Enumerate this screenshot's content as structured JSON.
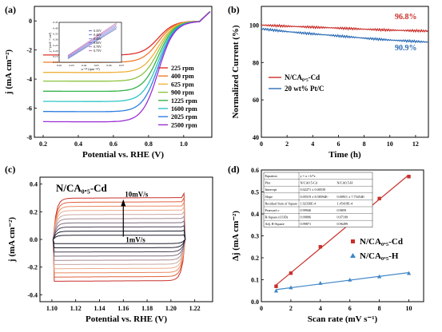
{
  "colors": {
    "rpm": [
      "#e0302a",
      "#f07a2a",
      "#efb23b",
      "#8bc43f",
      "#35b34a",
      "#2ec4c4",
      "#2d7fe0",
      "#9b2fd6"
    ],
    "b_nca": "#c9302c",
    "b_pt": "#2d6db5",
    "c_curves": [
      "#c9302c",
      "#e0623c",
      "#ea8a60",
      "#eeaa8a",
      "#caa8a0",
      "#a88a92",
      "#7c6a7a",
      "#4a3f56",
      "#1f1f2f"
    ],
    "d_cd": "#c9302c",
    "d_h": "#3f86c6"
  },
  "chart_data": [
    {
      "panel": "(a)",
      "type": "line",
      "xlabel": "Potential vs. RHE (V)",
      "ylabel": "j (mA cm⁻²)",
      "xlim": [
        0.15,
        1.16
      ],
      "ylim": [
        -8,
        1
      ],
      "xticks": [
        "0.2",
        "0.4",
        "0.6",
        "0.8",
        "1.0"
      ],
      "yticks": [
        "-8",
        "-6",
        "-4",
        "-2",
        "0"
      ],
      "series": [
        {
          "name": "225 rpm",
          "plateau": -2.35
        },
        {
          "name": "400 rpm",
          "plateau": -2.85
        },
        {
          "name": "625 rpm",
          "plateau": -3.55
        },
        {
          "name": "900 rpm",
          "plateau": -4.15
        },
        {
          "name": "1225 rpm",
          "plateau": -4.85
        },
        {
          "name": "1600 rpm",
          "plateau": -5.55
        },
        {
          "name": "2025 rpm",
          "plateau": -6.25
        },
        {
          "name": "2500 rpm",
          "plateau": -6.95
        }
      ],
      "inset": {
        "xlabel": "ω⁻¹⁄² (rpm⁻¹⁄²)",
        "ylabel": "j⁻¹ (mA⁻¹ cm²)",
        "xticks": [
          "0.02",
          "0.03",
          "0.04",
          "0.05",
          "0.06",
          "0.07"
        ],
        "yticks": [
          "0.10",
          "0.15",
          "0.20",
          "0.25",
          "0.30",
          "0.35",
          "0.40",
          "0.45"
        ],
        "labels": [
          "0.35V",
          "0.40V",
          "0.45V",
          "0.60V",
          "0.70V",
          "0.75V"
        ]
      }
    },
    {
      "panel": "(b)",
      "type": "line",
      "xlabel": "Time (h)",
      "ylabel": "Normalized Current (%)",
      "xlim": [
        0,
        13
      ],
      "ylim": [
        40,
        110
      ],
      "xticks": [
        "0",
        "2",
        "4",
        "6",
        "8",
        "10",
        "12"
      ],
      "yticks": [
        "40",
        "60",
        "80",
        "100"
      ],
      "series": [
        {
          "name": "N/CA₀.₅-Cd",
          "x": [
            0,
            2,
            4,
            6,
            8,
            10,
            13
          ],
          "values": [
            100,
            99.4,
            98.9,
            98.4,
            97.8,
            97.3,
            96.8
          ]
        },
        {
          "name": "20 wt% Pt/C",
          "x": [
            0,
            2,
            4,
            6,
            8,
            10,
            13
          ],
          "values": [
            98,
            96.5,
            95.3,
            94.2,
            93.0,
            92.0,
            90.9
          ]
        }
      ],
      "annotations": [
        "96.8%",
        "90.9%"
      ]
    },
    {
      "panel": "(c)",
      "type": "line",
      "title": "N/CA₀.₅-Cd",
      "xlabel": "Potential vs. RHE (V)",
      "ylabel": "j (mA cm⁻²)",
      "xlim": [
        1.09,
        1.235
      ],
      "ylim": [
        -0.45,
        0.45
      ],
      "xticks": [
        "1.10",
        "1.12",
        "1.14",
        "1.16",
        "1.18",
        "1.20",
        "1.22"
      ],
      "yticks": [
        "-0.4",
        "-0.2",
        "0.0",
        "0.2",
        "0.4"
      ],
      "scan_rates_mVs": [
        10,
        9,
        8,
        7,
        6,
        5,
        4,
        3,
        2,
        1
      ],
      "half_widths": [
        0.3,
        0.27,
        0.24,
        0.21,
        0.18,
        0.15,
        0.12,
        0.09,
        0.06,
        0.03
      ],
      "annotations": [
        "10mV/s",
        "1mV/s"
      ]
    },
    {
      "panel": "(d)",
      "type": "scatter",
      "xlabel": "Scan rate (mV s⁻¹)",
      "ylabel": "Δj (mA cm⁻²)",
      "xlim": [
        0,
        11
      ],
      "ylim": [
        0,
        0.6
      ],
      "xticks": [
        "0",
        "2",
        "4",
        "6",
        "8",
        "10"
      ],
      "yticks": [
        "0.0",
        "0.1",
        "0.2",
        "0.3",
        "0.4",
        "0.5",
        "0.6"
      ],
      "series": [
        {
          "name": "N/CA₀.₅-Cd",
          "x": [
            1,
            2,
            4,
            6,
            8,
            10
          ],
          "values": [
            0.07,
            0.13,
            0.25,
            0.36,
            0.47,
            0.57
          ]
        },
        {
          "name": "N/CA₀.₅-H",
          "x": [
            1,
            2,
            4,
            6,
            8,
            10
          ],
          "values": [
            0.05,
            0.065,
            0.085,
            0.1,
            0.115,
            0.13
          ]
        }
      ],
      "fit_table": {
        "rows": [
          [
            "Equation",
            "y = a + b*x",
            ""
          ],
          [
            "Plot",
            "N/CA0.5-Cd",
            "N/CA0.5-H"
          ],
          [
            "Intercept",
            "0.02271 ± 0.00539",
            ""
          ],
          [
            "Slope",
            "0.05519 ± 8.58594E-",
            "0.00911 ± 7.75454E-"
          ],
          [
            "Residual Sum of Square",
            "1.92336E-4",
            "1.45419E-4"
          ],
          [
            "Pearson's r",
            "0.99946",
            "0.9859"
          ],
          [
            "R-Square (COD)",
            "0.99896",
            "0.97199"
          ],
          [
            "Adj. R-Square",
            "0.99871",
            "0.96499"
          ]
        ]
      }
    }
  ],
  "panels": {
    "a": {
      "tag": "(a)"
    },
    "b": {
      "tag": "(b)"
    },
    "c": {
      "tag": "(c)"
    },
    "d": {
      "tag": "(d)"
    }
  }
}
